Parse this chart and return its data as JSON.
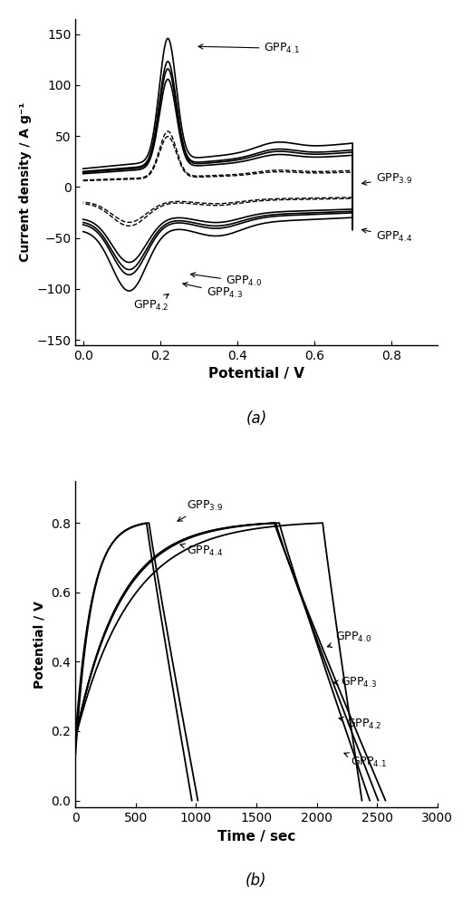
{
  "fig_width": 5.21,
  "fig_height": 10.0,
  "dpi": 100,
  "panel_a": {
    "xlabel": "Potential / V",
    "ylabel": "Current density / A g⁻¹",
    "xlim": [
      -0.02,
      0.92
    ],
    "ylim": [
      -155,
      165
    ],
    "xticks": [
      0.0,
      0.2,
      0.4,
      0.6,
      0.8
    ],
    "yticks": [
      -150,
      -100,
      -50,
      0,
      50,
      100,
      150
    ],
    "caption": "(a)",
    "curves": [
      {
        "label": "GPP4.1",
        "scale": 1.0,
        "ls": "-"
      },
      {
        "label": "GPP4.2",
        "scale": 0.845,
        "ls": "-"
      },
      {
        "label": "GPP4.3",
        "scale": 0.795,
        "ls": "-"
      },
      {
        "label": "GPP4.0",
        "scale": 0.725,
        "ls": "-"
      },
      {
        "label": "GPP3.9",
        "scale": 0.375,
        "ls": "--"
      },
      {
        "label": "GPP4.4",
        "scale": 0.34,
        "ls": "--"
      }
    ]
  },
  "panel_b": {
    "xlabel": "Time / sec",
    "ylabel": "Potential / V",
    "xlim": [
      0,
      3000
    ],
    "ylim": [
      -0.02,
      0.92
    ],
    "xticks": [
      0,
      500,
      1000,
      1500,
      2000,
      2500,
      3000
    ],
    "yticks": [
      0.0,
      0.2,
      0.4,
      0.6,
      0.8
    ],
    "caption": "(b)",
    "curves": [
      {
        "label": "GPP3.9",
        "charge_end": 590,
        "discharge_end": 965,
        "v_start": 0.13
      },
      {
        "label": "GPP4.4",
        "charge_end": 610,
        "discharge_end": 1015,
        "v_start": 0.18
      },
      {
        "label": "GPP4.1",
        "charge_end": 1650,
        "discharge_end": 2570,
        "v_start": 0.18
      },
      {
        "label": "GPP4.2",
        "charge_end": 1660,
        "discharge_end": 2510,
        "v_start": 0.18
      },
      {
        "label": "GPP4.3",
        "charge_end": 1690,
        "discharge_end": 2440,
        "v_start": 0.18
      },
      {
        "label": "GPP4.0",
        "charge_end": 2050,
        "discharge_end": 2375,
        "v_start": 0.18
      }
    ]
  }
}
